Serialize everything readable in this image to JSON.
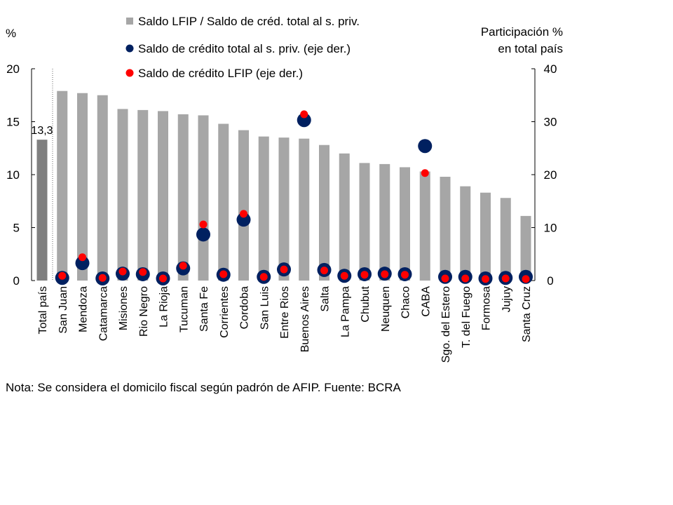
{
  "chart_data": {
    "type": "bar",
    "left_axis": {
      "unit_label": "%",
      "ylim": [
        0,
        20
      ],
      "ticks": [
        "0",
        "5",
        "10",
        "15",
        "20"
      ]
    },
    "right_axis": {
      "unit_label_line1": "Participación %",
      "unit_label_line2": "en total país",
      "ylim": [
        0,
        40
      ],
      "ticks": [
        "0",
        "10",
        "20",
        "30",
        "40"
      ]
    },
    "categories": [
      "Total país",
      "San Juan",
      "Mendoza",
      "Catamarca",
      "Misiones",
      "Rio Negro",
      "La Rioja",
      "Tucuman",
      "Santa Fe",
      "Corrientes",
      "Cordoba",
      "San Luis",
      "Entre Rios",
      "Buenos Aires",
      "Salta",
      "La Pampa",
      "Chubut",
      "Neuquen",
      "Chaco",
      "CABA",
      "Sgo. del Estero",
      "T. del Fuego",
      "Formosa",
      "Jujuy",
      "Santa Cruz"
    ],
    "series": [
      {
        "name": "Saldo LFIP / Saldo de créd. total al s. priv.",
        "type": "bar",
        "axis": "left",
        "color": "#a6a6a6",
        "highlight_color": "#7f7f7f",
        "values": [
          13.3,
          17.9,
          17.7,
          17.5,
          16.2,
          16.1,
          16.0,
          15.7,
          15.6,
          14.8,
          14.2,
          13.6,
          13.5,
          13.4,
          12.8,
          12.0,
          11.1,
          11.0,
          10.7,
          10.3,
          9.8,
          8.9,
          8.3,
          7.8,
          6.1
        ]
      },
      {
        "name": "Saldo de crédito total al s. priv. (eje der.)",
        "type": "scatter",
        "axis": "right",
        "color": "#002060",
        "values": [
          null,
          0.5,
          3.3,
          0.4,
          1.3,
          1.2,
          0.4,
          2.3,
          8.7,
          1.1,
          11.5,
          0.7,
          2.1,
          30.3,
          2.0,
          0.9,
          1.2,
          1.3,
          1.2,
          25.4,
          0.7,
          0.7,
          0.4,
          0.5,
          0.7
        ]
      },
      {
        "name": "Saldo de crédito LFIP (eje der.)",
        "type": "scatter",
        "axis": "right",
        "color": "#ff0000",
        "values": [
          null,
          0.9,
          4.4,
          0.5,
          1.7,
          1.6,
          0.4,
          2.8,
          10.6,
          1.2,
          12.6,
          0.7,
          2.1,
          31.4,
          1.9,
          0.9,
          1.1,
          1.2,
          1.1,
          20.3,
          0.4,
          0.4,
          0.3,
          0.4,
          0.3
        ]
      }
    ],
    "data_labels": [
      {
        "category": "Total país",
        "text": "13,3"
      }
    ],
    "grid": false,
    "legend_position": "top"
  },
  "note": "Nota: Se considera el domicilo fiscal según padrón de AFIP. Fuente: BCRA"
}
